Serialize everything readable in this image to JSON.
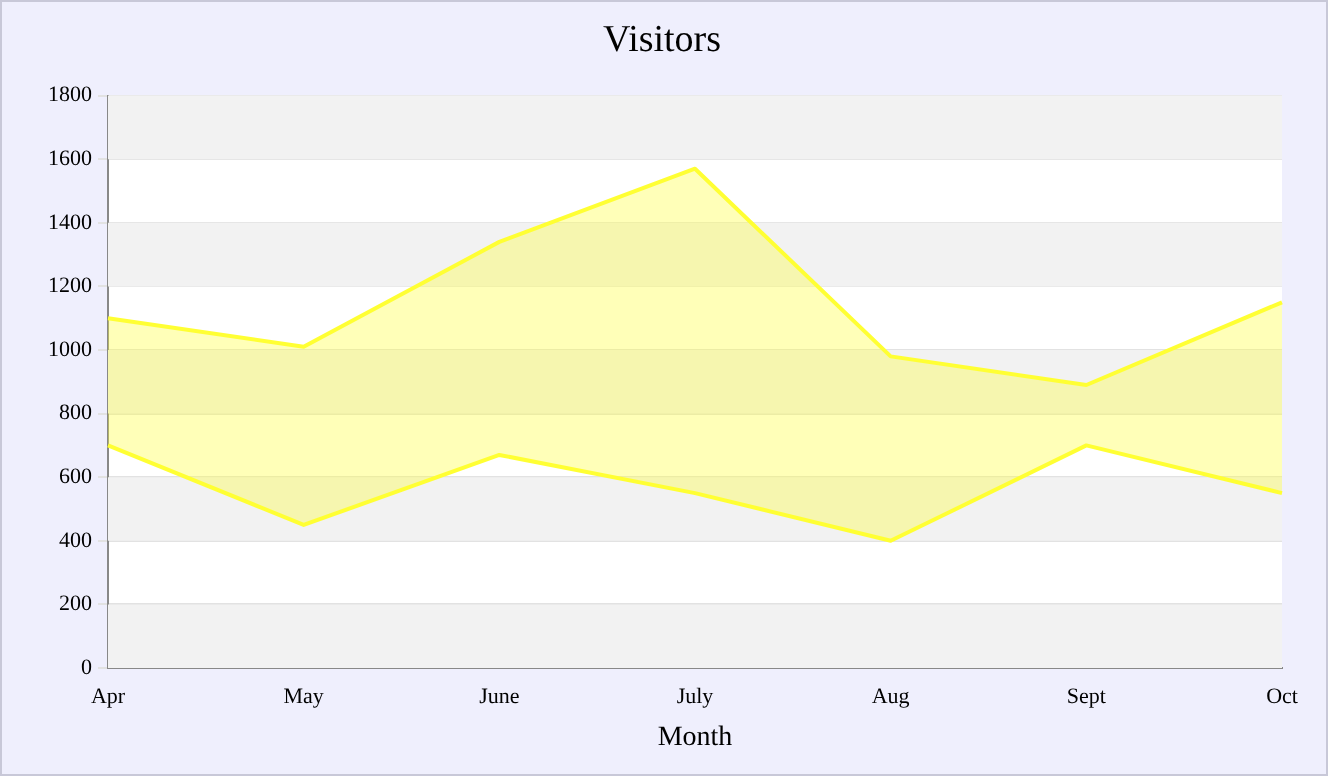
{
  "chart_data": {
    "type": "area",
    "title": "Visitors",
    "xlabel": "Month",
    "categories": [
      "Apr",
      "May",
      "June",
      "July",
      "Aug",
      "Sept",
      "Oct"
    ],
    "series": [
      {
        "type": "line",
        "color": "#ffff33",
        "values": [
          700,
          450,
          670,
          550,
          400,
          700,
          550
        ]
      },
      {
        "color": "#ffff33",
        "values": [
          1100,
          1010,
          1340,
          1570,
          980,
          890,
          1150
        ]
      }
    ],
    "ylim": [
      0,
      1800
    ],
    "yticks": [
      0,
      200,
      400,
      600,
      800,
      1000,
      1200,
      1400,
      1600,
      1800
    ],
    "grid": "y",
    "legend": false
  }
}
